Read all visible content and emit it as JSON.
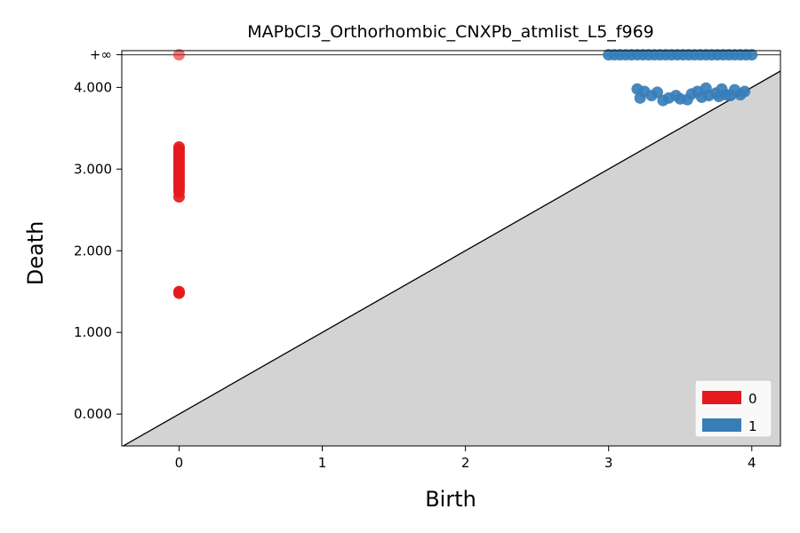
{
  "chart_data": {
    "type": "scatter",
    "title": "MAPbCl3_Orthorhombic_CNXPb_atmlist_L5_f969",
    "xlabel": "Birth",
    "ylabel": "Death",
    "xlim": [
      -0.4,
      4.2
    ],
    "ylim": [
      -0.39,
      4.45
    ],
    "infinity_value": 4.4,
    "infinity_label": "+∞",
    "x_ticks": [
      0,
      1,
      2,
      3,
      4
    ],
    "x_tick_labels": [
      "0",
      "1",
      "2",
      "3",
      "4"
    ],
    "y_ticks": [
      0,
      1,
      2,
      3,
      4
    ],
    "y_tick_labels": [
      "0.000",
      "1.000",
      "2.000",
      "3.000",
      "4.000"
    ],
    "diagonal": true,
    "grid": false,
    "legend_position": "bottom-right",
    "series": [
      {
        "name": "0",
        "color": "#e41a1c",
        "points": [
          [
            0,
            "inf"
          ],
          [
            0,
            3.27
          ],
          [
            0,
            3.24
          ],
          [
            0,
            3.21
          ],
          [
            0,
            3.18
          ],
          [
            0,
            3.15
          ],
          [
            0,
            3.12
          ],
          [
            0,
            3.09
          ],
          [
            0,
            3.06
          ],
          [
            0,
            3.03
          ],
          [
            0,
            3.0
          ],
          [
            0,
            2.97
          ],
          [
            0,
            2.94
          ],
          [
            0,
            2.91
          ],
          [
            0,
            2.88
          ],
          [
            0,
            2.85
          ],
          [
            0,
            2.82
          ],
          [
            0,
            2.79
          ],
          [
            0,
            2.76
          ],
          [
            0,
            2.72
          ],
          [
            0,
            2.66
          ],
          [
            0,
            1.5
          ],
          [
            0,
            1.49
          ],
          [
            0,
            1.48
          ]
        ]
      },
      {
        "name": "1",
        "color": "#377eb8",
        "points": [
          [
            3.0,
            "inf"
          ],
          [
            3.04,
            "inf"
          ],
          [
            3.08,
            "inf"
          ],
          [
            3.12,
            "inf"
          ],
          [
            3.16,
            "inf"
          ],
          [
            3.2,
            "inf"
          ],
          [
            3.24,
            "inf"
          ],
          [
            3.28,
            "inf"
          ],
          [
            3.32,
            "inf"
          ],
          [
            3.36,
            "inf"
          ],
          [
            3.4,
            "inf"
          ],
          [
            3.44,
            "inf"
          ],
          [
            3.48,
            "inf"
          ],
          [
            3.52,
            "inf"
          ],
          [
            3.56,
            "inf"
          ],
          [
            3.6,
            "inf"
          ],
          [
            3.64,
            "inf"
          ],
          [
            3.68,
            "inf"
          ],
          [
            3.72,
            "inf"
          ],
          [
            3.76,
            "inf"
          ],
          [
            3.8,
            "inf"
          ],
          [
            3.84,
            "inf"
          ],
          [
            3.88,
            "inf"
          ],
          [
            3.92,
            "inf"
          ],
          [
            3.96,
            "inf"
          ],
          [
            4.0,
            "inf"
          ],
          [
            3.2,
            3.98
          ],
          [
            3.22,
            3.87
          ],
          [
            3.25,
            3.95
          ],
          [
            3.3,
            3.9
          ],
          [
            3.34,
            3.94
          ],
          [
            3.38,
            3.84
          ],
          [
            3.42,
            3.87
          ],
          [
            3.47,
            3.9
          ],
          [
            3.5,
            3.86
          ],
          [
            3.55,
            3.85
          ],
          [
            3.58,
            3.92
          ],
          [
            3.62,
            3.95
          ],
          [
            3.65,
            3.88
          ],
          [
            3.68,
            3.99
          ],
          [
            3.7,
            3.9
          ],
          [
            3.75,
            3.93
          ],
          [
            3.77,
            3.89
          ],
          [
            3.79,
            3.98
          ],
          [
            3.82,
            3.91
          ],
          [
            3.85,
            3.9
          ],
          [
            3.88,
            3.97
          ],
          [
            3.92,
            3.91
          ],
          [
            3.95,
            3.95
          ]
        ]
      }
    ]
  }
}
